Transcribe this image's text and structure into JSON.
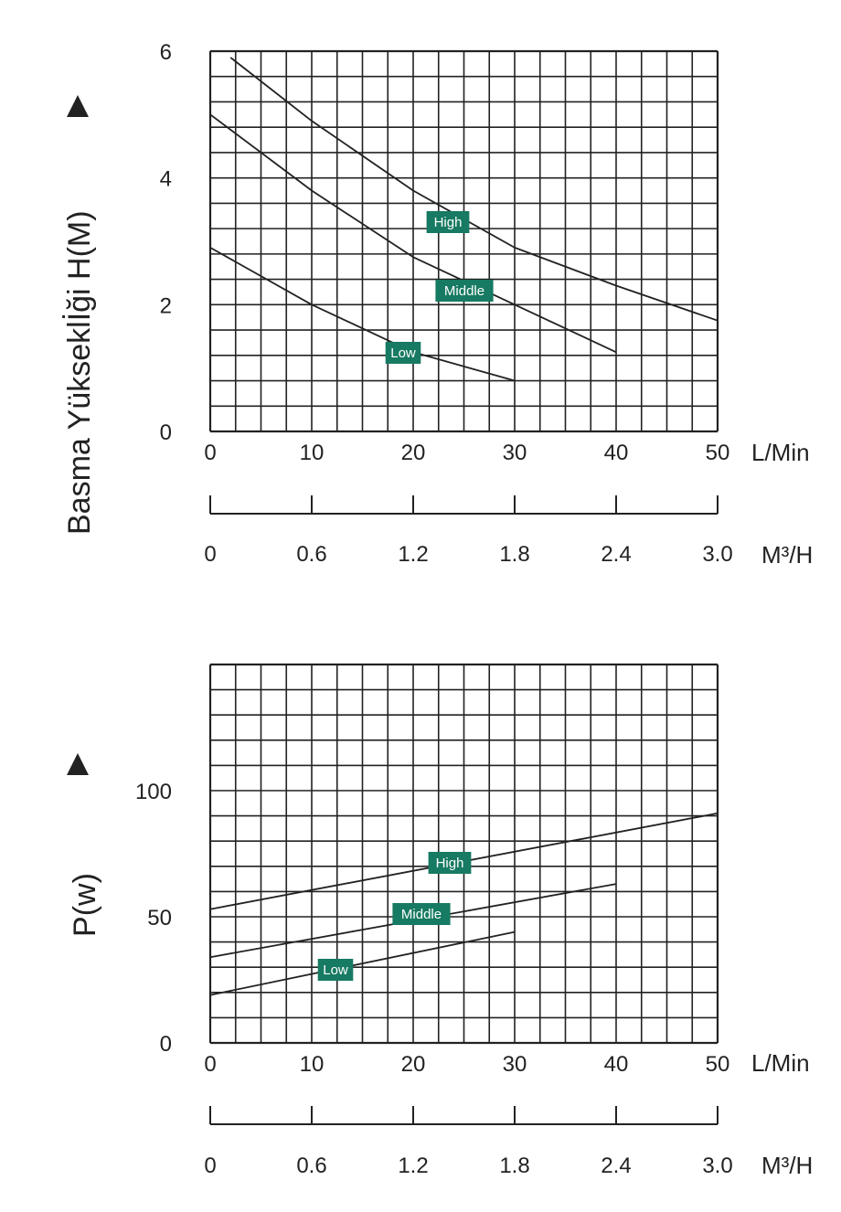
{
  "colors": {
    "ink": "#222222",
    "label_bg": "#177a62",
    "label_text": "#ffffff"
  },
  "chart_data": [
    {
      "type": "line",
      "ylabel": "Basma Yükseklİği H(M)",
      "x_unit": "L/Min",
      "secondary_x_unit": "M³/H",
      "xlim": [
        0,
        50
      ],
      "ylim": [
        0,
        6
      ],
      "grid": true,
      "x_ticks": [
        "0",
        "10",
        "20",
        "30",
        "40",
        "50"
      ],
      "y_ticks": [
        "0",
        "2",
        "4",
        "6"
      ],
      "secondary_ticks": [
        "0",
        "0.6",
        "1.2",
        "1.8",
        "2.4",
        "3.0"
      ],
      "series": [
        {
          "name": "High",
          "x": [
            2,
            10,
            20,
            30,
            40,
            50
          ],
          "y": [
            5.9,
            4.9,
            3.8,
            2.9,
            2.3,
            1.75
          ]
        },
        {
          "name": "Middle",
          "x": [
            0,
            10,
            20,
            30,
            40
          ],
          "y": [
            5.0,
            3.8,
            2.75,
            2.0,
            1.25
          ]
        },
        {
          "name": "Low",
          "x": [
            0,
            10,
            20,
            30
          ],
          "y": [
            2.9,
            2.0,
            1.25,
            0.8
          ]
        }
      ]
    },
    {
      "type": "line",
      "ylabel": "P(w)",
      "x_unit": "L/Min",
      "secondary_x_unit": "M³/H",
      "xlim": [
        0,
        50
      ],
      "ylim": [
        0,
        150
      ],
      "grid": true,
      "x_ticks": [
        "0",
        "10",
        "20",
        "30",
        "40",
        "50"
      ],
      "y_ticks": [
        "0",
        "50",
        "100"
      ],
      "secondary_ticks": [
        "0",
        "0.6",
        "1.2",
        "1.8",
        "2.4",
        "3.0"
      ],
      "series": [
        {
          "name": "High",
          "x": [
            0,
            50
          ],
          "y": [
            53,
            91
          ]
        },
        {
          "name": "Middle",
          "x": [
            0,
            40
          ],
          "y": [
            34,
            63
          ]
        },
        {
          "name": "Low",
          "x": [
            0,
            30
          ],
          "y": [
            19,
            44
          ]
        }
      ]
    }
  ]
}
